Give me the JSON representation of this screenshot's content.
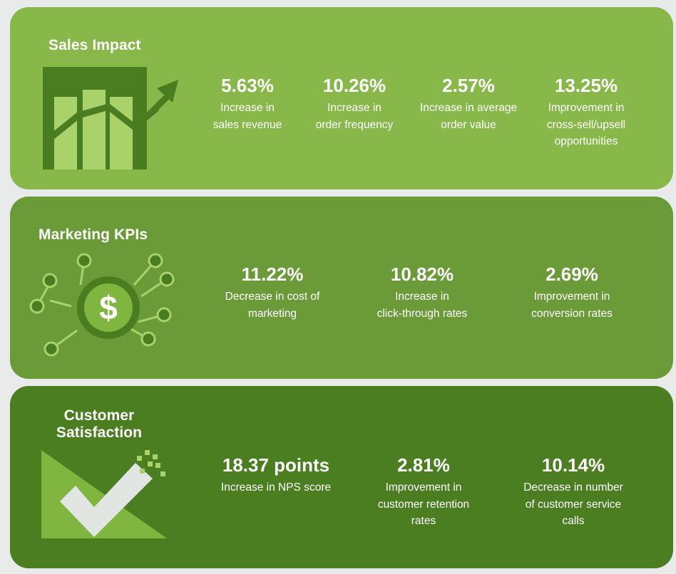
{
  "sales": {
    "title": "Sales Impact",
    "stats": [
      {
        "value": "5.63%",
        "line1": "Increase in",
        "line2": "sales revenue"
      },
      {
        "value": "10.26%",
        "line1": "Increase in",
        "line2": "order frequency"
      },
      {
        "value": "2.57%",
        "line1": "Increase in average",
        "line2": "order value"
      },
      {
        "value": "13.25%",
        "line1": "Improvement in",
        "line2": "cross-sell/upsell",
        "line3": "opportunities"
      }
    ]
  },
  "marketing": {
    "title": "Marketing KPIs",
    "stats": [
      {
        "value": "11.22%",
        "line1": "Decrease in cost of",
        "line2": "marketing"
      },
      {
        "value": "10.82%",
        "line1": "Increase in",
        "line2": "click-through rates"
      },
      {
        "value": "2.69%",
        "line1": "Improvement in",
        "line2": "conversion rates"
      }
    ]
  },
  "customer": {
    "title_line1": "Customer",
    "title_line2": "Satisfaction",
    "stats": [
      {
        "value": "18.37 points",
        "line1": "Increase in NPS score"
      },
      {
        "value": "2.81%",
        "line1": "Improvement in",
        "line2": "customer retention",
        "line3": "rates"
      },
      {
        "value": "10.14%",
        "line1": "Decrease in number",
        "line2": "of customer service",
        "line3": "calls"
      }
    ]
  },
  "icons": {
    "sales": "bar-chart-trend-icon",
    "marketing": "dollar-network-icon",
    "customer": "checkmark-icon"
  },
  "colors": {
    "background": "#e9ebea",
    "sales_panel": "#88b84a",
    "marketing_panel": "#6a9b38",
    "customer_panel": "#4a7e20",
    "text": "#ffffff"
  }
}
